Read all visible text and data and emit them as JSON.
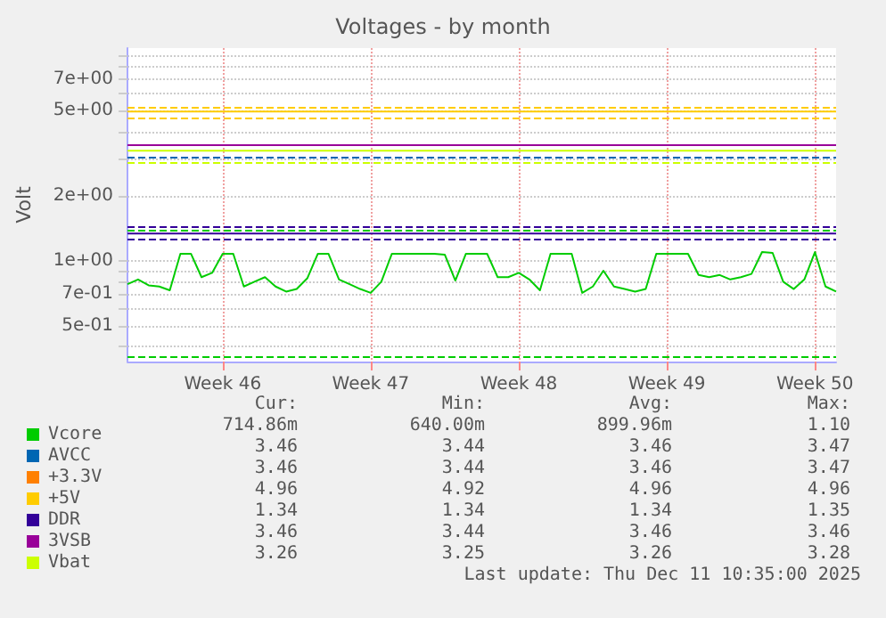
{
  "chart_data": {
    "type": "line",
    "title": "Voltages - by month",
    "ylabel": "Volt",
    "log": "y",
    "grid": true,
    "legend": "bottom left",
    "marker": "none",
    "line_style": "solid",
    "categories": [
      null,
      null,
      null,
      null,
      null,
      null,
      null,
      null,
      null,
      "Week 46",
      null,
      null,
      null,
      null,
      null,
      null,
      null,
      null,
      null,
      null,
      null,
      null,
      null,
      "Week 47",
      null,
      null,
      null,
      null,
      null,
      null,
      null,
      null,
      null,
      null,
      null,
      null,
      null,
      "Week 48",
      null,
      null,
      null,
      null,
      null,
      null,
      null,
      null,
      null,
      null,
      null,
      null,
      null,
      "Week 49",
      null,
      null,
      null,
      null,
      null,
      null,
      null,
      null,
      null,
      null,
      null,
      null,
      null,
      "Week 50",
      null,
      null
    ],
    "ylim": [
      0.34,
      9.8
    ],
    "yticks": [
      {
        "value": 0.4,
        "label": null
      },
      {
        "value": 0.5,
        "label": "5e-01"
      },
      {
        "value": 0.6,
        "label": null
      },
      {
        "value": 0.7,
        "label": "7e-01"
      },
      {
        "value": 0.8,
        "label": null
      },
      {
        "value": 0.9,
        "label": null
      },
      {
        "value": 1,
        "label": "1e+00"
      },
      {
        "value": 2,
        "label": "2e+00"
      },
      {
        "value": 3,
        "label": null
      },
      {
        "value": 4,
        "label": null
      },
      {
        "value": 5,
        "label": "5e+00"
      },
      {
        "value": 6,
        "label": null
      },
      {
        "value": 7,
        "label": "7e+00"
      },
      {
        "value": 8,
        "label": null
      },
      {
        "value": 9,
        "label": null
      }
    ],
    "series": [
      {
        "name": "Vcore",
        "color": "#00cc00",
        "values": [
          0.78,
          0.82,
          0.77,
          0.76,
          0.73,
          1.08,
          1.08,
          0.84,
          0.88,
          1.08,
          1.08,
          0.76,
          0.8,
          0.84,
          0.76,
          0.72,
          0.74,
          0.83,
          1.08,
          1.08,
          0.82,
          0.78,
          0.74,
          0.71,
          0.8,
          1.08,
          1.08,
          1.08,
          1.08,
          1.08,
          1.07,
          0.81,
          1.08,
          1.08,
          1.08,
          0.84,
          0.84,
          0.88,
          0.82,
          0.73,
          1.08,
          1.08,
          1.08,
          0.71,
          0.76,
          0.9,
          0.76,
          0.74,
          0.72,
          0.74,
          1.08,
          1.08,
          1.08,
          1.08,
          0.86,
          0.84,
          0.86,
          0.82,
          0.84,
          0.87,
          1.1,
          1.09,
          0.8,
          0.74,
          0.82,
          1.1,
          0.76,
          0.72
        ]
      },
      {
        "name": "AVCC",
        "color": "#0066b3",
        "values": [
          null,
          null,
          null,
          null,
          null,
          null,
          null,
          null,
          null,
          null,
          null,
          null,
          null,
          null,
          null,
          null,
          null,
          null,
          null,
          null,
          null,
          null,
          null,
          null,
          null,
          null,
          null,
          null,
          null,
          null,
          null,
          null,
          null,
          null,
          null,
          null,
          null,
          null,
          null,
          null,
          null,
          null,
          null,
          null,
          null,
          null,
          null,
          null,
          null,
          null,
          null,
          null,
          null,
          null,
          null,
          null,
          null,
          null,
          null,
          null,
          null,
          null,
          null,
          null,
          null,
          null,
          null,
          null
        ]
      },
      {
        "name": "+3.3V",
        "color": "#ff8000",
        "values": [
          null,
          null,
          null,
          null,
          null,
          null,
          null,
          null,
          null,
          null,
          null,
          null,
          null,
          null,
          null,
          null,
          null,
          null,
          null,
          null,
          null,
          null,
          null,
          null,
          null,
          null,
          null,
          null,
          null,
          null,
          null,
          null,
          null,
          null,
          null,
          null,
          null,
          null,
          null,
          null,
          null,
          null,
          null,
          null,
          null,
          null,
          null,
          null,
          null,
          null,
          null,
          null,
          null,
          null,
          null,
          null,
          null,
          null,
          null,
          null,
          null,
          null,
          null,
          null,
          null,
          null,
          null,
          null
        ]
      },
      {
        "name": "+5V",
        "color": "#ffcc00",
        "values": [
          4.96,
          4.96,
          4.96,
          4.96,
          4.96,
          4.96,
          4.96,
          4.96,
          4.96,
          4.96,
          4.96,
          4.96,
          4.96,
          4.96,
          4.96,
          4.96,
          4.96,
          4.96,
          4.96,
          4.96,
          4.96,
          4.96,
          4.96,
          4.96,
          4.96,
          4.96,
          4.96,
          4.96,
          4.96,
          4.96,
          4.96,
          4.96,
          4.96,
          4.96,
          4.96,
          4.96,
          4.96,
          4.96,
          4.96,
          4.96,
          4.96,
          4.96,
          4.96,
          4.96,
          4.96,
          4.96,
          4.96,
          4.96,
          4.96,
          4.96,
          4.96,
          4.96,
          4.96,
          4.96,
          4.96,
          4.96,
          4.96,
          4.96,
          4.96,
          4.96,
          4.96,
          4.96,
          4.96,
          4.96,
          4.96,
          4.96,
          4.96,
          4.96
        ]
      },
      {
        "name": "DDR",
        "color": "#330099",
        "values": [
          1.34,
          1.34,
          1.34,
          1.34,
          1.34,
          1.34,
          1.34,
          1.34,
          1.34,
          1.34,
          1.34,
          1.34,
          1.34,
          1.34,
          1.34,
          1.34,
          1.34,
          1.34,
          1.34,
          1.34,
          1.34,
          1.34,
          1.34,
          1.34,
          1.34,
          1.34,
          1.34,
          1.34,
          1.34,
          1.34,
          1.34,
          1.34,
          1.34,
          1.34,
          1.34,
          1.34,
          1.34,
          1.34,
          1.34,
          1.34,
          1.34,
          1.34,
          1.34,
          1.34,
          1.34,
          1.34,
          1.34,
          1.34,
          1.34,
          1.34,
          1.34,
          1.34,
          1.34,
          1.34,
          1.34,
          1.34,
          1.34,
          1.34,
          1.34,
          1.34,
          1.34,
          1.34,
          1.34,
          1.34,
          1.34,
          1.34,
          1.34,
          1.34
        ]
      },
      {
        "name": "3VSB",
        "color": "#990099",
        "values": [
          3.46,
          3.46,
          3.46,
          3.46,
          3.46,
          3.46,
          3.46,
          3.46,
          3.46,
          3.46,
          3.46,
          3.46,
          3.46,
          3.46,
          3.46,
          3.46,
          3.46,
          3.46,
          3.46,
          3.46,
          3.46,
          3.46,
          3.46,
          3.46,
          3.46,
          3.46,
          3.46,
          3.46,
          3.46,
          3.46,
          3.46,
          3.46,
          3.46,
          3.46,
          3.46,
          3.46,
          3.46,
          3.46,
          3.46,
          3.46,
          3.46,
          3.46,
          3.46,
          3.46,
          3.46,
          3.46,
          3.46,
          3.46,
          3.46,
          3.46,
          3.46,
          3.46,
          3.46,
          3.46,
          3.46,
          3.46,
          3.46,
          3.46,
          3.46,
          3.46,
          3.46,
          3.46,
          3.46,
          3.46,
          3.46,
          3.46,
          3.46,
          3.46
        ]
      },
      {
        "name": "Vbat",
        "color": "#ccff00",
        "values": [
          3.26,
          3.26,
          3.26,
          3.26,
          3.26,
          3.26,
          3.26,
          3.26,
          3.26,
          3.26,
          3.26,
          3.26,
          3.26,
          3.26,
          3.26,
          3.26,
          3.26,
          3.26,
          3.26,
          3.26,
          3.26,
          3.26,
          3.26,
          3.26,
          3.26,
          3.26,
          3.26,
          3.26,
          3.26,
          3.26,
          3.26,
          3.26,
          3.26,
          3.26,
          3.26,
          3.26,
          3.26,
          3.26,
          3.26,
          3.26,
          3.26,
          3.26,
          3.26,
          3.26,
          3.26,
          3.26,
          3.26,
          3.26,
          3.26,
          3.26,
          3.26,
          3.26,
          3.26,
          3.26,
          3.26,
          3.26,
          3.26,
          3.26,
          3.26,
          3.26,
          3.26,
          3.26,
          3.26,
          3.26,
          3.26,
          3.26,
          3.26,
          3.26
        ]
      }
    ],
    "ref_lines": [
      {
        "axis": "y",
        "value": 5.2,
        "color": "#ffcc00",
        "line_style": "dashed"
      },
      {
        "axis": "y",
        "value": 4.6,
        "color": "#ffcc00",
        "line_style": "dashed"
      },
      {
        "axis": "y",
        "value": 3.04,
        "color": "#0066b3",
        "line_style": "dashed"
      },
      {
        "axis": "y",
        "value": 2.89,
        "color": "#ccff00",
        "line_style": "dashed"
      },
      {
        "axis": "y",
        "value": 1.45,
        "color": "#330099",
        "line_style": "dashed"
      },
      {
        "axis": "y",
        "value": 1.4,
        "color": "#00cc00",
        "line_style": "dashed"
      },
      {
        "axis": "y",
        "value": 1.27,
        "color": "#330099",
        "line_style": "dashed"
      },
      {
        "axis": "y",
        "value": 0.36,
        "color": "#00cc00",
        "line_style": "dashed"
      }
    ],
    "annotations": [
      "Cur:",
      "Min:",
      "Avg:",
      "Max:",
      "714.86m",
      "640.00m",
      "899.96m",
      "1.10",
      "3.46",
      "3.44",
      "3.46",
      "3.47",
      "3.46",
      "3.44",
      "3.46",
      "3.47",
      "4.96",
      "4.92",
      "4.96",
      "4.96",
      "1.34",
      "1.34",
      "1.34",
      "1.35",
      "3.46",
      "3.44",
      "3.46",
      "3.46",
      "3.26",
      "3.25",
      "3.26",
      "3.28",
      "Last update: Thu Dec 11 10:35:00 2025"
    ]
  }
}
